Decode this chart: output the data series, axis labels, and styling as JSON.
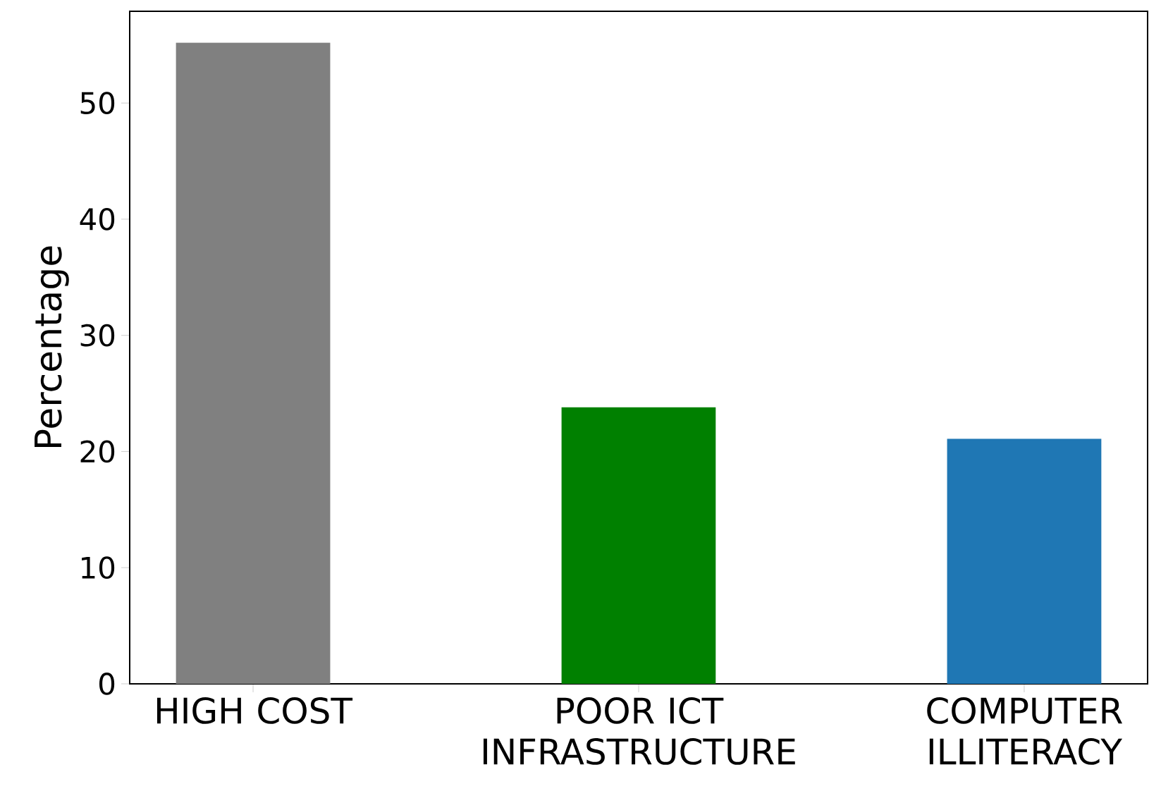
{
  "chart_data": {
    "type": "bar",
    "ylabel": "Percentage",
    "categories": [
      "HIGH COST",
      "POOR ICT INFRASTRUCTURE",
      "COMPUTER ILLITERACY"
    ],
    "values": [
      55.2,
      23.8,
      21.1
    ],
    "colors": [
      "#808080",
      "#008000",
      "#1f77b4"
    ],
    "ylim": [
      0,
      57.9
    ],
    "yticks": [
      0,
      10,
      20,
      30,
      40,
      50
    ],
    "grid": false
  }
}
